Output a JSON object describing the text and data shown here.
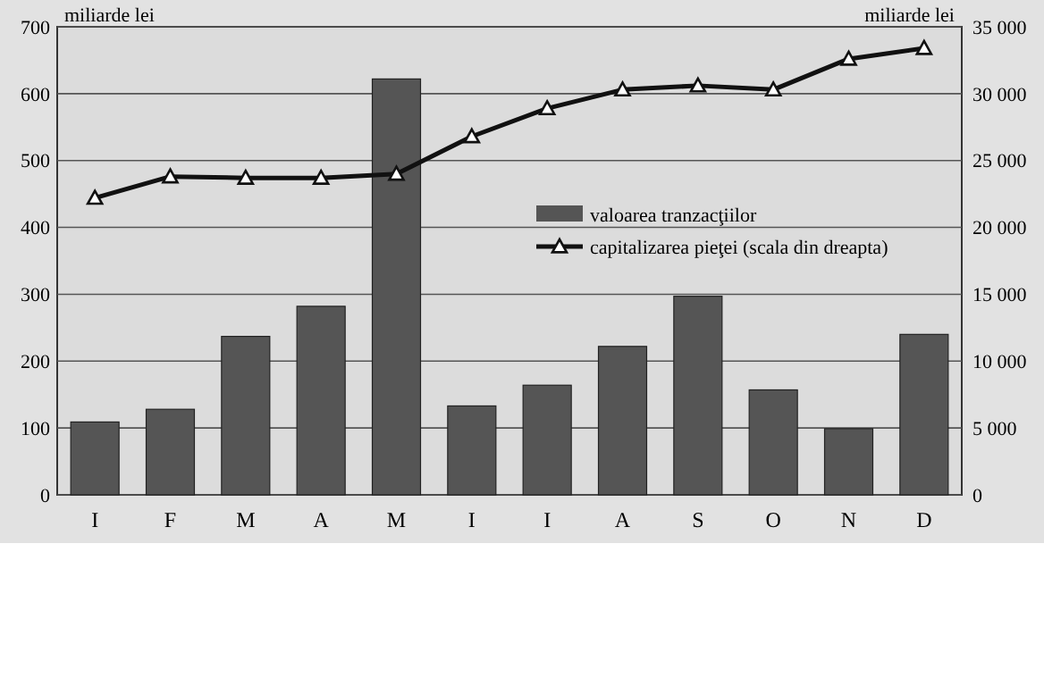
{
  "chart_data": {
    "type": "bar",
    "ylabel": "miliarde lei",
    "y2label": "miliarde lei",
    "categories": [
      "I",
      "F",
      "M",
      "A",
      "M",
      "I",
      "I",
      "A",
      "S",
      "O",
      "N",
      "D"
    ],
    "series": [
      {
        "name": "valoarea tranzacţiilor",
        "color": "#555555",
        "values": [
          109,
          128,
          237,
          282,
          622,
          133,
          164,
          222,
          297,
          157,
          99,
          240
        ]
      },
      {
        "name": "capitalizarea  pieţei (scala din dreapta)",
        "type": "line",
        "axis": "y2",
        "color": "#111111",
        "marker": "triangle",
        "values": [
          22200,
          23800,
          23700,
          23700,
          24000,
          26800,
          28900,
          30300,
          30600,
          30300,
          32600,
          33400
        ]
      }
    ],
    "ylim": [
      0,
      700
    ],
    "yticks": [
      0,
      100,
      200,
      300,
      400,
      500,
      600,
      700
    ],
    "y2lim": [
      0,
      35000
    ],
    "y2ticks": [
      0,
      {
        "value": 5000,
        "label": "5 000"
      },
      {
        "value": 10000,
        "label": "10 000"
      },
      {
        "value": 15000,
        "label": "15 000"
      },
      {
        "value": 20000,
        "label": "20 000"
      },
      {
        "value": 25000,
        "label": "25 000"
      },
      {
        "value": 30000,
        "label": "30 000"
      },
      {
        "value": 35000,
        "label": "35 000"
      }
    ],
    "grid": "y",
    "legend": "right"
  }
}
